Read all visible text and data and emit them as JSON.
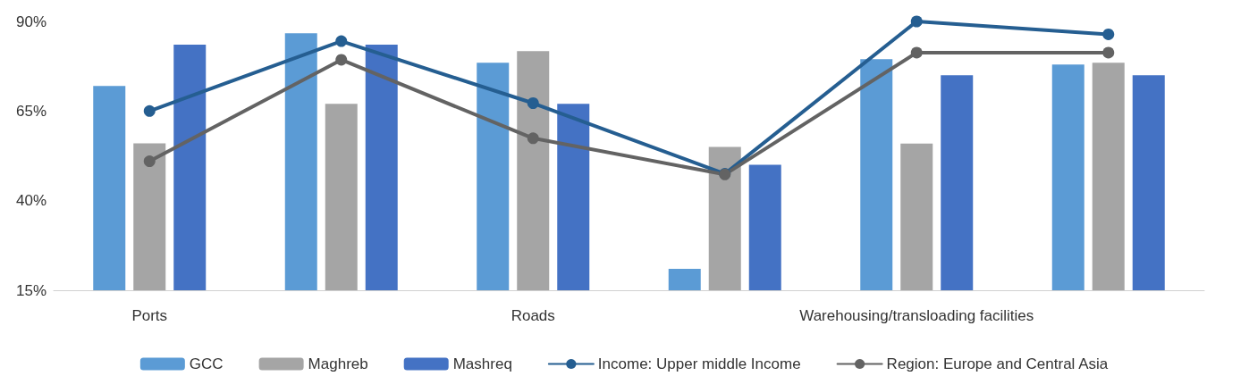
{
  "chart_data": {
    "type": "bar",
    "categories": [
      "Ports",
      null,
      "Roads",
      null,
      "Warehousing/transloading facilities",
      null
    ],
    "series": [
      {
        "name": "GCC",
        "color": "#5b9bd5",
        "values": [
          72,
          86.7,
          78.5,
          21,
          79.5,
          78
        ]
      },
      {
        "name": "Maghreb",
        "color": "#a5a5a5",
        "values": [
          56,
          67,
          81.7,
          55,
          55.9,
          78.5
        ]
      },
      {
        "name": "Mashreq",
        "color": "#4472c4",
        "values": [
          83.5,
          83.5,
          67,
          50,
          75,
          75
        ]
      },
      {
        "name": "Income: Upper middle Income",
        "type": "line",
        "color": "#255e91",
        "values": [
          65,
          84.5,
          67.2,
          47.5,
          90,
          86.4
        ]
      },
      {
        "name": "Region: Europe and Central Asia",
        "type": "line",
        "color": "#636363",
        "values": [
          51,
          79.3,
          57.4,
          47.3,
          81.3,
          81.3
        ]
      }
    ],
    "ylim": [
      15,
      90
    ],
    "yticks": [
      {
        "value": 15,
        "label": "15%"
      },
      {
        "value": 40,
        "label": "40%"
      },
      {
        "value": 65,
        "label": "65%"
      },
      {
        "value": 90,
        "label": "90%"
      }
    ],
    "grid": false,
    "legend": "bottom",
    "marker": "circle",
    "line_style": "solid"
  }
}
